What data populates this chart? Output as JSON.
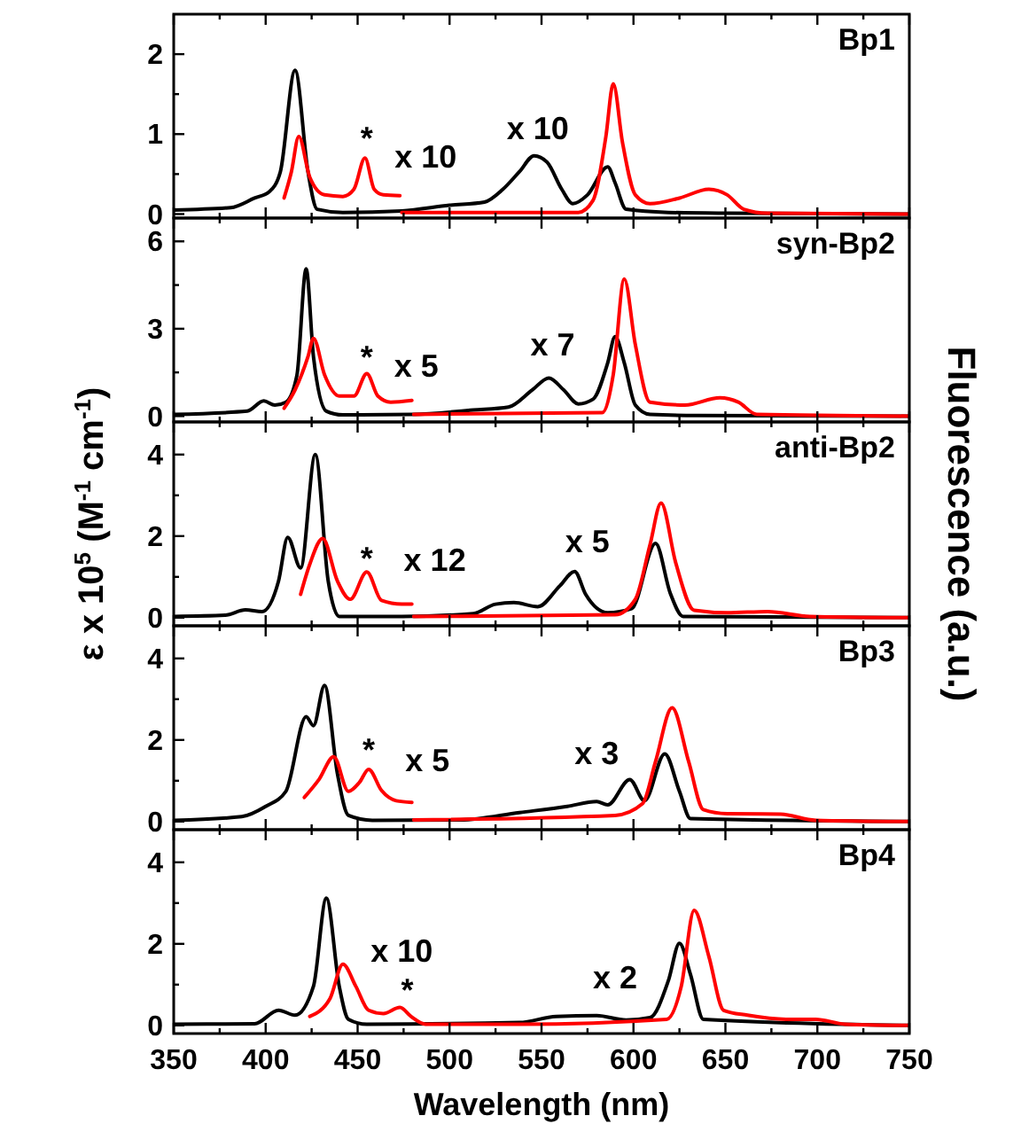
{
  "chart_data": [
    {
      "type": "line",
      "title": "Bp1",
      "tick_labels": "y",
      "xlim": [
        350,
        750
      ],
      "ylim": [
        -0.05,
        2.5
      ],
      "xticks": [
        350,
        {
          "value": 375,
          "label": null
        },
        400,
        {
          "value": 425,
          "label": null
        },
        450,
        {
          "value": 475,
          "label": null
        },
        500,
        {
          "value": 525,
          "label": null
        },
        550,
        {
          "value": 575,
          "label": null
        },
        600,
        {
          "value": 625,
          "label": null
        },
        650,
        {
          "value": 675,
          "label": null
        },
        700,
        {
          "value": 725,
          "label": null
        },
        750
      ],
      "yticks": [
        0,
        {
          "value": 0.5,
          "label": null
        },
        1,
        {
          "value": 1.5,
          "label": null
        },
        2
      ],
      "series": [
        {
          "color": "#000000",
          "x": [
            350,
            381,
            394,
            402,
            408,
            416,
            423,
            428,
            442,
            474,
            500,
            519,
            529,
            538,
            546,
            553,
            561,
            567,
            575,
            586,
            590,
            596,
            619,
            651,
            750
          ],
          "values": [
            0.05,
            0.08,
            0.2,
            0.28,
            0.53,
            1.8,
            0.53,
            0.06,
            0.02,
            0.04,
            0.11,
            0.15,
            0.31,
            0.53,
            0.73,
            0.65,
            0.31,
            0.13,
            0.24,
            0.59,
            0.39,
            0.06,
            0.02,
            0.01,
            0
          ]
        },
        {
          "color": "#ff0000",
          "x": [
            410,
            414,
            418,
            424,
            432,
            442,
            448,
            454,
            459,
            464,
            473
          ],
          "values": [
            0.2,
            0.53,
            0.97,
            0.46,
            0.24,
            0.22,
            0.31,
            0.7,
            0.31,
            0.24,
            0.23
          ]
        },
        {
          "color": "#ff0000",
          "x": [
            474,
            570,
            578,
            585,
            589,
            594,
            601,
            609,
            625,
            641,
            651,
            660,
            673,
            750
          ],
          "values": [
            0.02,
            0.02,
            0.17,
            0.97,
            1.63,
            0.9,
            0.24,
            0.13,
            0.2,
            0.31,
            0.24,
            0.06,
            0.01,
            0
          ]
        }
      ],
      "annotations": [
        "*",
        "x 10",
        "x 10"
      ]
    },
    {
      "type": "line",
      "title": "syn-Bp2",
      "tick_labels": "y",
      "xlim": [
        350,
        750
      ],
      "ylim": [
        -0.2,
        6.8
      ],
      "xticks": [
        350,
        {
          "value": 375,
          "label": null
        },
        400,
        {
          "value": 425,
          "label": null
        },
        450,
        {
          "value": 475,
          "label": null
        },
        500,
        {
          "value": 525,
          "label": null
        },
        550,
        {
          "value": 575,
          "label": null
        },
        600,
        {
          "value": 625,
          "label": null
        },
        650,
        {
          "value": 675,
          "label": null
        },
        700,
        {
          "value": 725,
          "label": null
        },
        750
      ],
      "yticks": [
        0,
        {
          "value": 1.5,
          "label": null
        },
        3,
        {
          "value": 4.5,
          "label": null
        },
        6
      ],
      "series": [
        {
          "color": "#000000",
          "x": [
            350,
            390,
            399,
            405,
            411,
            417,
            422,
            426,
            433,
            442,
            480,
            513,
            532,
            545,
            554,
            562,
            570,
            578,
            586,
            590,
            595,
            601,
            609,
            635,
            750
          ],
          "values": [
            0.06,
            0.17,
            0.52,
            0.38,
            0.48,
            1.4,
            5.06,
            2.04,
            0.17,
            0.04,
            0.06,
            0.21,
            0.31,
            0.9,
            1.31,
            0.9,
            0.42,
            0.58,
            1.83,
            2.73,
            1.83,
            0.38,
            0.06,
            0.02,
            0
          ]
        },
        {
          "color": "#ff0000",
          "x": [
            410,
            416,
            423,
            426,
            432,
            440,
            448,
            455,
            461,
            468,
            479.5
          ],
          "values": [
            0.27,
            0.9,
            2.04,
            2.67,
            1.42,
            0.69,
            0.69,
            1.46,
            0.69,
            0.48,
            0.54
          ]
        },
        {
          "color": "#ff0000",
          "x": [
            480.5,
            583,
            589,
            595,
            601,
            609,
            628,
            647,
            657,
            667,
            750
          ],
          "values": [
            0.06,
            0.12,
            1.42,
            4.71,
            2.46,
            0.48,
            0.38,
            0.63,
            0.48,
            0.06,
            0
          ]
        }
      ],
      "annotations": [
        "*",
        "x 5",
        "x 7"
      ]
    },
    {
      "type": "line",
      "title": "anti-Bp2",
      "tick_labels": "y",
      "xlim": [
        350,
        750
      ],
      "ylim": [
        -0.2,
        4.8
      ],
      "ylabel": "ε x 10$^{5}$ (M$^{-1}$ cm$^{-1}$)",
      "y2label": "Fluorescence (a.u.)",
      "xticks": [
        350,
        {
          "value": 375,
          "label": null
        },
        400,
        {
          "value": 425,
          "label": null
        },
        450,
        {
          "value": 475,
          "label": null
        },
        500,
        {
          "value": 525,
          "label": null
        },
        550,
        {
          "value": 575,
          "label": null
        },
        600,
        {
          "value": 625,
          "label": null
        },
        650,
        {
          "value": 675,
          "label": null
        },
        700,
        {
          "value": 725,
          "label": null
        },
        750
      ],
      "yticks": [
        0,
        {
          "value": 1,
          "label": null
        },
        2,
        {
          "value": 3,
          "label": null
        },
        4
      ],
      "series": [
        {
          "color": "#000000",
          "x": [
            350,
            378,
            389,
            398,
            407,
            412,
            419,
            427,
            434,
            440,
            474,
            513,
            525,
            535,
            548,
            560,
            568,
            574,
            586,
            599,
            612,
            620,
            627,
            750
          ],
          "values": [
            0.03,
            0.06,
            0.19,
            0.15,
            0.9,
            1.97,
            1.22,
            4.0,
            0.9,
            0.03,
            0.03,
            0.1,
            0.33,
            0.37,
            0.27,
            0.78,
            1.13,
            0.57,
            0.12,
            0.22,
            1.82,
            0.6,
            0.03,
            0
          ]
        },
        {
          "color": "#ff0000",
          "x": [
            419,
            424,
            431,
            439,
            446,
            455,
            463,
            474,
            479.5
          ],
          "values": [
            0.57,
            1.31,
            1.94,
            0.9,
            0.45,
            1.12,
            0.42,
            0.33,
            0.33
          ]
        },
        {
          "color": "#ff0000",
          "x": [
            480.5,
            590,
            601,
            609,
            615,
            623,
            633,
            651,
            673,
            696,
            750
          ],
          "values": [
            0.03,
            0.07,
            0.45,
            1.79,
            2.81,
            1.34,
            0.18,
            0.12,
            0.15,
            0.03,
            0
          ]
        }
      ],
      "annotations": [
        "*",
        "x 12",
        "x 5"
      ]
    },
    {
      "type": "line",
      "title": "Bp3",
      "tick_labels": "y",
      "xlim": [
        350,
        750
      ],
      "ylim": [
        -0.2,
        4.8
      ],
      "xticks": [
        350,
        {
          "value": 375,
          "label": null
        },
        400,
        {
          "value": 425,
          "label": null
        },
        450,
        {
          "value": 475,
          "label": null
        },
        500,
        {
          "value": 525,
          "label": null
        },
        550,
        {
          "value": 575,
          "label": null
        },
        600,
        {
          "value": 625,
          "label": null
        },
        650,
        {
          "value": 675,
          "label": null
        },
        700,
        {
          "value": 725,
          "label": null
        },
        750
      ],
      "yticks": [
        0,
        {
          "value": 1,
          "label": null
        },
        2,
        {
          "value": 3,
          "label": null
        },
        4
      ],
      "series": [
        {
          "color": "#000000",
          "x": [
            350,
            387,
            400,
            411,
            422,
            426,
            432,
            439,
            445,
            458,
            506,
            538,
            564,
            580,
            586,
            598,
            606,
            617,
            625,
            631,
            750
          ],
          "values": [
            0.03,
            0.12,
            0.37,
            0.74,
            2.57,
            2.35,
            3.34,
            1.18,
            0.15,
            0.03,
            0.04,
            0.22,
            0.37,
            0.49,
            0.41,
            1.03,
            0.51,
            1.66,
            0.74,
            0.07,
            0
          ]
        },
        {
          "color": "#ff0000",
          "x": [
            421,
            429,
            437,
            445,
            451,
            456,
            463,
            471,
            479.5
          ],
          "values": [
            0.59,
            1.03,
            1.59,
            0.74,
            0.96,
            1.28,
            0.76,
            0.51,
            0.47
          ]
        },
        {
          "color": "#ff0000",
          "x": [
            480.5,
            590,
            605,
            612,
            621,
            630,
            638,
            651,
            680,
            699,
            750
          ],
          "values": [
            0.04,
            0.15,
            0.44,
            1.47,
            2.79,
            1.47,
            0.29,
            0.19,
            0.18,
            0.03,
            0
          ]
        }
      ],
      "annotations": [
        "*",
        "x 5",
        "x 3"
      ]
    },
    {
      "type": "line",
      "title": "Bp4",
      "xlabel": "Wavelength (nm)",
      "xlim": [
        350,
        750
      ],
      "ylim": [
        -0.2,
        4.8
      ],
      "xticks": [
        350,
        {
          "value": 375,
          "label": null
        },
        400,
        {
          "value": 425,
          "label": null
        },
        450,
        {
          "value": 475,
          "label": null
        },
        500,
        {
          "value": 525,
          "label": null
        },
        550,
        {
          "value": 575,
          "label": null
        },
        600,
        {
          "value": 625,
          "label": null
        },
        650,
        {
          "value": 675,
          "label": null
        },
        700,
        {
          "value": 725,
          "label": null
        },
        750
      ],
      "yticks": [
        0,
        {
          "value": 1,
          "label": null
        },
        2,
        {
          "value": 3,
          "label": null
        },
        4
      ],
      "series": [
        {
          "color": "#000000",
          "x": [
            350,
            394,
            407,
            416,
            426,
            433,
            440,
            445,
            455,
            538,
            558,
            580,
            596,
            609,
            619,
            625,
            631,
            638,
            750
          ],
          "values": [
            0.03,
            0.04,
            0.37,
            0.25,
            0.96,
            3.12,
            0.96,
            0.15,
            0.03,
            0.07,
            0.22,
            0.24,
            0.13,
            0.19,
            1.1,
            2.01,
            1.25,
            0.15,
            0
          ]
        },
        {
          "color": "#ff0000",
          "x": [
            424,
            435,
            442,
            449,
            456,
            464,
            473,
            479,
            487,
            538,
            618,
            626,
            633,
            641,
            649,
            662,
            683,
            699,
            715,
            750
          ],
          "values": [
            0.22,
            0.66,
            1.5,
            0.96,
            0.37,
            0.29,
            0.44,
            0.22,
            0.03,
            0.03,
            0.15,
            0.96,
            2.82,
            1.69,
            0.37,
            0.25,
            0.15,
            0.15,
            0.03,
            0
          ]
        }
      ],
      "annotations": [
        "x 10",
        "*",
        "x 2"
      ]
    }
  ]
}
